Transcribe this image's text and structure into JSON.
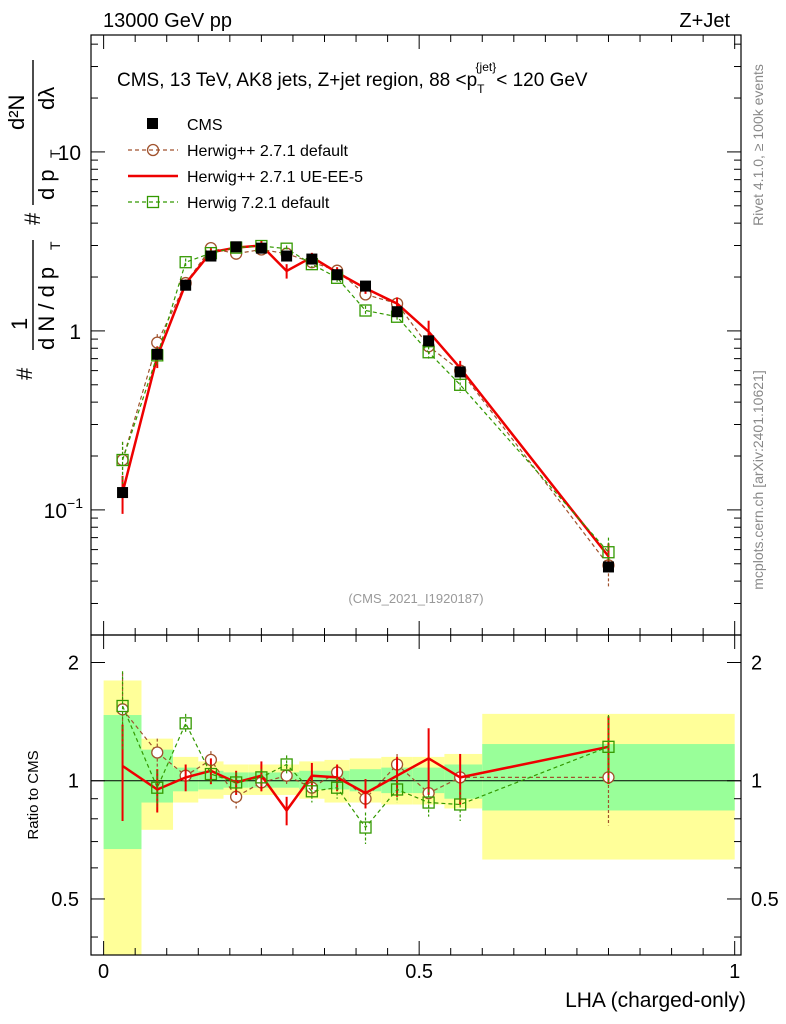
{
  "header": {
    "left": "13000 GeV pp",
    "right": "Z+Jet"
  },
  "side_labels": {
    "rivet": "Rivet 4.1.0, ≥ 100k events",
    "mcplots": "mcplots.cern.ch [arXiv:2401.10621]"
  },
  "colors": {
    "data": "#000000",
    "herwig_pp_default": "#a0522d",
    "herwig_pp_ueee5": "#ee0000",
    "herwig7_default": "#339900",
    "band_inner": "#99ff99",
    "band_outer": "#ffff99"
  },
  "chart_data": [
    {
      "type": "line",
      "panel": "main",
      "title": "CMS, 13 TeV, AK8 jets, Z+jet region, 88 <p_T^{jet}< 120 GeV",
      "title_parts": {
        "prefix": "CMS, 13 TeV, AK8 jets, Z+jet region, 88 <p",
        "sup": "{jet}",
        "sub": "T",
        "suffix": "< 120 GeV"
      },
      "ylabel_parts": {
        "hash1": "#",
        "one": "1",
        "dN": "d N / d p",
        "T1": "T",
        "hash2": "#",
        "d2N": "d²N",
        "dpT": "d p",
        "T2": "T",
        "dlambda": "dλ"
      },
      "xlim": [
        -0.02,
        1.01
      ],
      "ylim": [
        0.02,
        45
      ],
      "yscale": "log",
      "y_ticks": [
        {
          "value": 0.1,
          "base": "10",
          "exp": "−1"
        },
        {
          "value": 1,
          "base": "1",
          "exp": ""
        },
        {
          "value": 10,
          "base": "10",
          "exp": ""
        }
      ],
      "watermark": "(CMS_2021_I1920187)",
      "legend": {
        "placement": "top-left",
        "entries": [
          "CMS",
          "Herwig++ 2.7.1 default",
          "Herwig++ 2.7.1 UE-EE-5",
          "Herwig 7.2.1 default"
        ]
      },
      "series": [
        {
          "name": "CMS",
          "style": "marker",
          "x": [
            0.03,
            0.085,
            0.13,
            0.17,
            0.21,
            0.25,
            0.29,
            0.33,
            0.37,
            0.415,
            0.465,
            0.515,
            0.565,
            0.8
          ],
          "y": [
            0.125,
            0.74,
            1.8,
            2.62,
            2.95,
            2.9,
            2.62,
            2.52,
            2.06,
            1.78,
            1.28,
            0.88,
            0.59,
            0.048
          ]
        },
        {
          "name": "Herwig++ 2.7.1 default",
          "style": "dashed-circle",
          "x": [
            0.03,
            0.085,
            0.13,
            0.17,
            0.21,
            0.25,
            0.29,
            0.33,
            0.37,
            0.415,
            0.465,
            0.515,
            0.565,
            0.8
          ],
          "y": [
            0.19,
            0.86,
            1.85,
            2.9,
            2.7,
            2.85,
            2.7,
            2.42,
            2.17,
            1.6,
            1.42,
            0.82,
            0.6,
            0.049
          ],
          "err": [
            0.05,
            0.1,
            0.1,
            0.12,
            0.12,
            0.12,
            0.12,
            0.1,
            0.1,
            0.08,
            0.08,
            0.06,
            0.05,
            0.012
          ]
        },
        {
          "name": "Herwig++ 2.7.1 UE-EE-5",
          "style": "solid",
          "x": [
            0.03,
            0.085,
            0.13,
            0.17,
            0.21,
            0.25,
            0.29,
            0.33,
            0.37,
            0.415,
            0.465,
            0.515,
            0.565,
            0.8
          ],
          "y": [
            0.125,
            0.72,
            1.84,
            2.75,
            2.92,
            3.0,
            2.16,
            2.58,
            2.12,
            1.73,
            1.42,
            0.99,
            0.62,
            0.055
          ],
          "err": [
            0.03,
            0.1,
            0.1,
            0.15,
            0.15,
            0.2,
            0.2,
            0.15,
            0.15,
            0.12,
            0.12,
            0.15,
            0.06,
            0.01
          ]
        },
        {
          "name": "Herwig 7.2.1 default",
          "style": "dashed-square",
          "x": [
            0.03,
            0.085,
            0.13,
            0.17,
            0.21,
            0.25,
            0.29,
            0.33,
            0.37,
            0.415,
            0.465,
            0.515,
            0.565,
            0.8
          ],
          "y": [
            0.19,
            0.73,
            2.42,
            2.72,
            2.92,
            2.98,
            2.88,
            2.36,
            1.98,
            1.3,
            1.2,
            0.76,
            0.5,
            0.058
          ],
          "err": [
            0.05,
            0.08,
            0.12,
            0.12,
            0.12,
            0.12,
            0.12,
            0.1,
            0.1,
            0.08,
            0.08,
            0.06,
            0.05,
            0.012
          ]
        }
      ]
    },
    {
      "type": "line",
      "panel": "ratio",
      "ylabel": "Ratio to CMS",
      "xlabel": "LHA (charged-only)",
      "xlim": [
        -0.02,
        1.01
      ],
      "ylim": [
        0.36,
        2.35
      ],
      "yscale": "log",
      "x_ticks": [
        {
          "value": 0,
          "label": "0"
        },
        {
          "value": 0.5,
          "label": "0.5"
        },
        {
          "value": 1,
          "label": "1"
        }
      ],
      "y_ticks": [
        {
          "value": 0.5,
          "label": "0.5"
        },
        {
          "value": 1,
          "label": "1"
        },
        {
          "value": 2,
          "label": "2"
        }
      ],
      "bins": [
        {
          "lo": 0.0,
          "hi": 0.06,
          "inner": [
            0.67,
            1.47
          ],
          "outer": [
            0.35,
            1.8
          ]
        },
        {
          "lo": 0.06,
          "hi": 0.11,
          "inner": [
            0.88,
            1.2
          ],
          "outer": [
            0.75,
            1.28
          ]
        },
        {
          "lo": 0.11,
          "hi": 0.15,
          "inner": [
            0.94,
            1.08
          ],
          "outer": [
            0.88,
            1.15
          ]
        },
        {
          "lo": 0.15,
          "hi": 0.19,
          "inner": [
            0.95,
            1.06
          ],
          "outer": [
            0.9,
            1.12
          ]
        },
        {
          "lo": 0.19,
          "hi": 0.23,
          "inner": [
            0.96,
            1.05
          ],
          "outer": [
            0.92,
            1.1
          ]
        },
        {
          "lo": 0.23,
          "hi": 0.27,
          "inner": [
            0.96,
            1.05
          ],
          "outer": [
            0.92,
            1.1
          ]
        },
        {
          "lo": 0.27,
          "hi": 0.31,
          "inner": [
            0.96,
            1.05
          ],
          "outer": [
            0.92,
            1.1
          ]
        },
        {
          "lo": 0.31,
          "hi": 0.35,
          "inner": [
            0.95,
            1.06
          ],
          "outer": [
            0.9,
            1.12
          ]
        },
        {
          "lo": 0.35,
          "hi": 0.39,
          "inner": [
            0.95,
            1.06
          ],
          "outer": [
            0.88,
            1.13
          ]
        },
        {
          "lo": 0.39,
          "hi": 0.44,
          "inner": [
            0.94,
            1.07
          ],
          "outer": [
            0.88,
            1.14
          ]
        },
        {
          "lo": 0.44,
          "hi": 0.49,
          "inner": [
            0.93,
            1.08
          ],
          "outer": [
            0.87,
            1.15
          ]
        },
        {
          "lo": 0.49,
          "hi": 0.54,
          "inner": [
            0.93,
            1.08
          ],
          "outer": [
            0.87,
            1.15
          ]
        },
        {
          "lo": 0.54,
          "hi": 0.6,
          "inner": [
            0.9,
            1.1
          ],
          "outer": [
            0.85,
            1.17
          ]
        },
        {
          "lo": 0.6,
          "hi": 1.0,
          "inner": [
            0.84,
            1.24
          ],
          "outer": [
            0.63,
            1.48
          ]
        }
      ],
      "series": [
        {
          "name": "Herwig++ 2.7.1 default",
          "style": "dashed-circle",
          "x": [
            0.03,
            0.085,
            0.13,
            0.17,
            0.21,
            0.25,
            0.29,
            0.33,
            0.37,
            0.415,
            0.465,
            0.515,
            0.565,
            0.8
          ],
          "y": [
            1.52,
            1.18,
            1.03,
            1.13,
            0.91,
            0.99,
            1.03,
            0.96,
            1.05,
            0.9,
            1.1,
            0.93,
            1.02,
            1.02
          ],
          "err": [
            0.36,
            0.1,
            0.06,
            0.06,
            0.06,
            0.05,
            0.06,
            0.05,
            0.05,
            0.05,
            0.07,
            0.07,
            0.08,
            0.25
          ]
        },
        {
          "name": "Herwig++ 2.7.1 UE-EE-5",
          "style": "solid",
          "x": [
            0.03,
            0.085,
            0.13,
            0.17,
            0.21,
            0.25,
            0.29,
            0.33,
            0.37,
            0.415,
            0.465,
            0.515,
            0.565,
            0.8
          ],
          "y": [
            1.09,
            0.95,
            1.02,
            1.06,
            0.99,
            1.03,
            0.84,
            1.03,
            1.02,
            0.93,
            1.03,
            1.14,
            1.02,
            1.22
          ],
          "err": [
            0.3,
            0.12,
            0.08,
            0.08,
            0.07,
            0.09,
            0.07,
            0.08,
            0.08,
            0.08,
            0.12,
            0.22,
            0.15,
            0.24
          ]
        },
        {
          "name": "Herwig 7.2.1 default",
          "style": "dashed-square",
          "x": [
            0.03,
            0.085,
            0.13,
            0.17,
            0.21,
            0.25,
            0.29,
            0.33,
            0.37,
            0.415,
            0.465,
            0.515,
            0.565,
            0.8
          ],
          "y": [
            1.55,
            0.96,
            1.4,
            1.04,
            0.99,
            1.02,
            1.1,
            0.94,
            0.96,
            0.76,
            0.95,
            0.88,
            0.87,
            1.22
          ],
          "err": [
            0.35,
            0.1,
            0.08,
            0.06,
            0.06,
            0.05,
            0.06,
            0.06,
            0.06,
            0.07,
            0.07,
            0.07,
            0.08,
            0.25
          ]
        }
      ]
    }
  ]
}
